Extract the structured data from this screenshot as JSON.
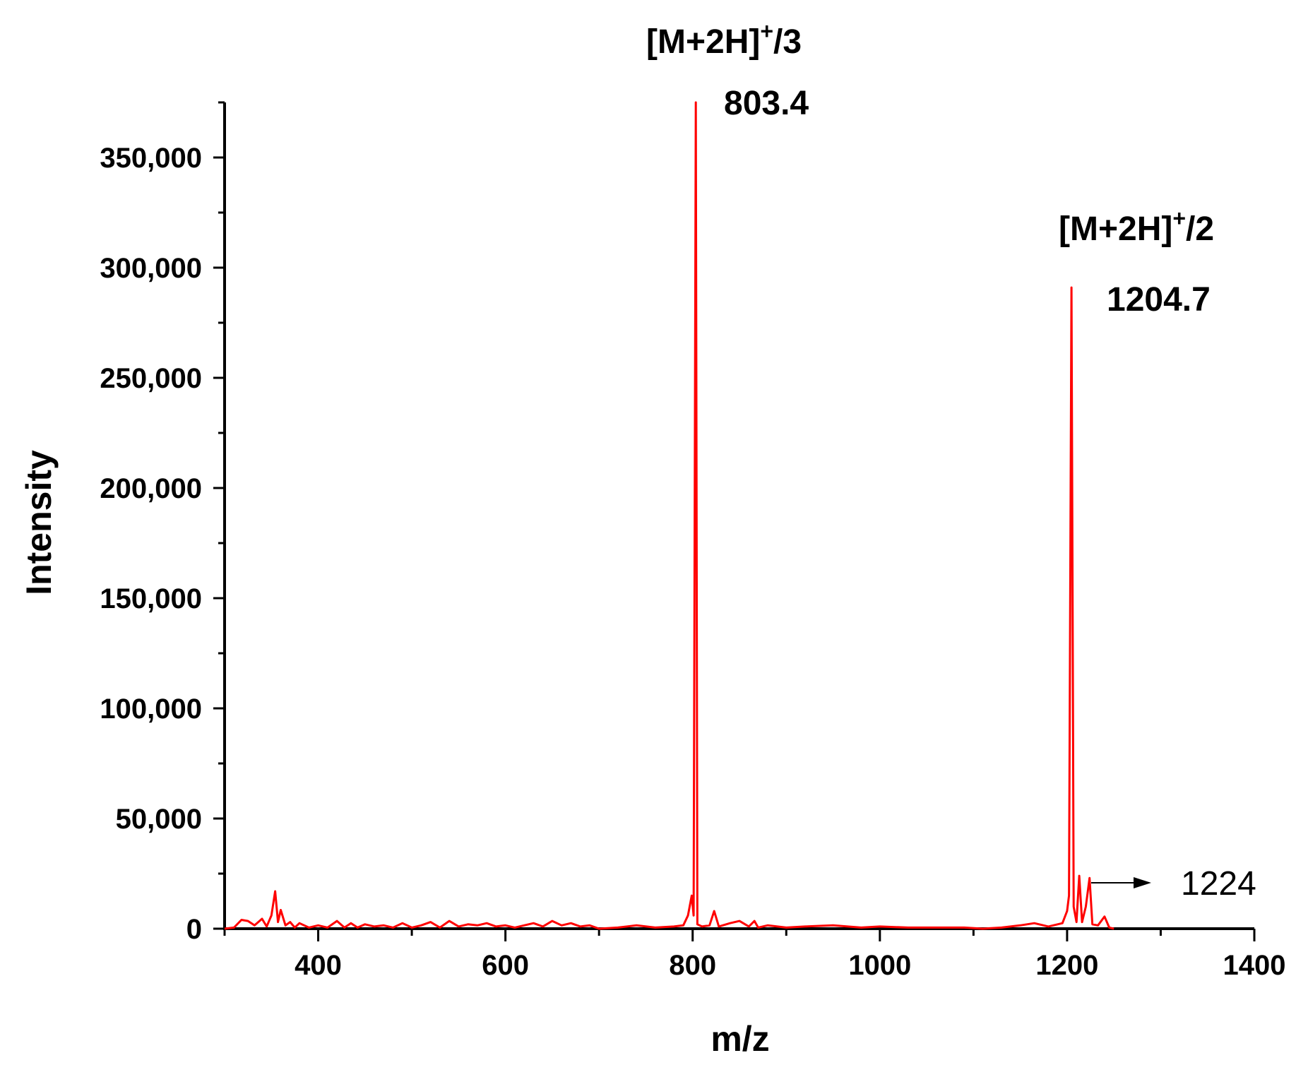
{
  "chart_data": {
    "type": "line",
    "title": "",
    "xlabel": "m/z",
    "ylabel": "Intensity",
    "xlim": [
      300,
      1400
    ],
    "ylim": [
      0,
      375000
    ],
    "x_ticks": [
      400,
      600,
      800,
      1000,
      1200,
      1400
    ],
    "x_tick_labels": [
      "400",
      "600",
      "800",
      "1000",
      "1200",
      "1400"
    ],
    "y_ticks": [
      0,
      50000,
      100000,
      150000,
      200000,
      250000,
      300000,
      350000
    ],
    "y_tick_labels": [
      "0",
      "50,000",
      "100,000",
      "150,000",
      "200,000",
      "250,000",
      "300,000",
      "350,000"
    ],
    "grid": false,
    "line_color": "#ff0000",
    "series": [
      {
        "color": "#ff0000",
        "points": [
          [
            300,
            0
          ],
          [
            310,
            500
          ],
          [
            318,
            4000
          ],
          [
            325,
            3500
          ],
          [
            332,
            1500
          ],
          [
            340,
            4500
          ],
          [
            345,
            1000
          ],
          [
            350,
            6000
          ],
          [
            354,
            17000
          ],
          [
            357,
            3000
          ],
          [
            360,
            8500
          ],
          [
            365,
            1500
          ],
          [
            370,
            3000
          ],
          [
            375,
            500
          ],
          [
            380,
            2500
          ],
          [
            390,
            500
          ],
          [
            400,
            1500
          ],
          [
            410,
            500
          ],
          [
            420,
            3500
          ],
          [
            428,
            500
          ],
          [
            435,
            2500
          ],
          [
            442,
            500
          ],
          [
            450,
            2000
          ],
          [
            460,
            1000
          ],
          [
            470,
            1500
          ],
          [
            480,
            500
          ],
          [
            490,
            2500
          ],
          [
            500,
            500
          ],
          [
            510,
            1500
          ],
          [
            520,
            3000
          ],
          [
            530,
            500
          ],
          [
            540,
            3500
          ],
          [
            550,
            1000
          ],
          [
            560,
            2000
          ],
          [
            570,
            1500
          ],
          [
            580,
            2500
          ],
          [
            590,
            1000
          ],
          [
            600,
            1500
          ],
          [
            610,
            500
          ],
          [
            620,
            1500
          ],
          [
            630,
            2500
          ],
          [
            640,
            1000
          ],
          [
            650,
            3500
          ],
          [
            660,
            1500
          ],
          [
            670,
            2500
          ],
          [
            680,
            1000
          ],
          [
            690,
            1500
          ],
          [
            700,
            0
          ],
          [
            720,
            500
          ],
          [
            740,
            1500
          ],
          [
            760,
            500
          ],
          [
            780,
            1000
          ],
          [
            790,
            1500
          ],
          [
            795,
            6000
          ],
          [
            799,
            15000
          ],
          [
            801,
            6000
          ],
          [
            803.4,
            375000
          ],
          [
            805,
            2000
          ],
          [
            810,
            1000
          ],
          [
            818,
            1500
          ],
          [
            823,
            8000
          ],
          [
            828,
            1000
          ],
          [
            840,
            2500
          ],
          [
            850,
            3500
          ],
          [
            860,
            1000
          ],
          [
            866,
            3500
          ],
          [
            870,
            500
          ],
          [
            880,
            1500
          ],
          [
            900,
            500
          ],
          [
            920,
            1000
          ],
          [
            950,
            1500
          ],
          [
            980,
            500
          ],
          [
            1000,
            1000
          ],
          [
            1030,
            500
          ],
          [
            1060,
            500
          ],
          [
            1090,
            500
          ],
          [
            1110,
            0
          ],
          [
            1130,
            500
          ],
          [
            1150,
            1500
          ],
          [
            1165,
            2500
          ],
          [
            1180,
            1000
          ],
          [
            1195,
            2500
          ],
          [
            1200,
            8000
          ],
          [
            1202,
            15000
          ],
          [
            1204.7,
            291000
          ],
          [
            1207,
            10000
          ],
          [
            1210,
            3000
          ],
          [
            1213,
            24000
          ],
          [
            1216,
            3000
          ],
          [
            1220,
            10000
          ],
          [
            1224,
            23000
          ],
          [
            1227,
            2000
          ],
          [
            1233,
            1500
          ],
          [
            1240,
            5500
          ],
          [
            1245,
            500
          ],
          [
            1250,
            0
          ]
        ]
      }
    ],
    "annotations": [
      {
        "label": "[M+2H]",
        "sup": "+",
        "suffix": "/3",
        "value_label": "803.4",
        "x": 803.4,
        "y": 375000
      },
      {
        "label": "[M+2H]",
        "sup": "+",
        "suffix": "/2",
        "value_label": "1204.7",
        "x": 1204.7,
        "y": 291000
      },
      {
        "value_label": "1224",
        "x": 1224,
        "y": 23000,
        "arrow": true
      }
    ]
  }
}
